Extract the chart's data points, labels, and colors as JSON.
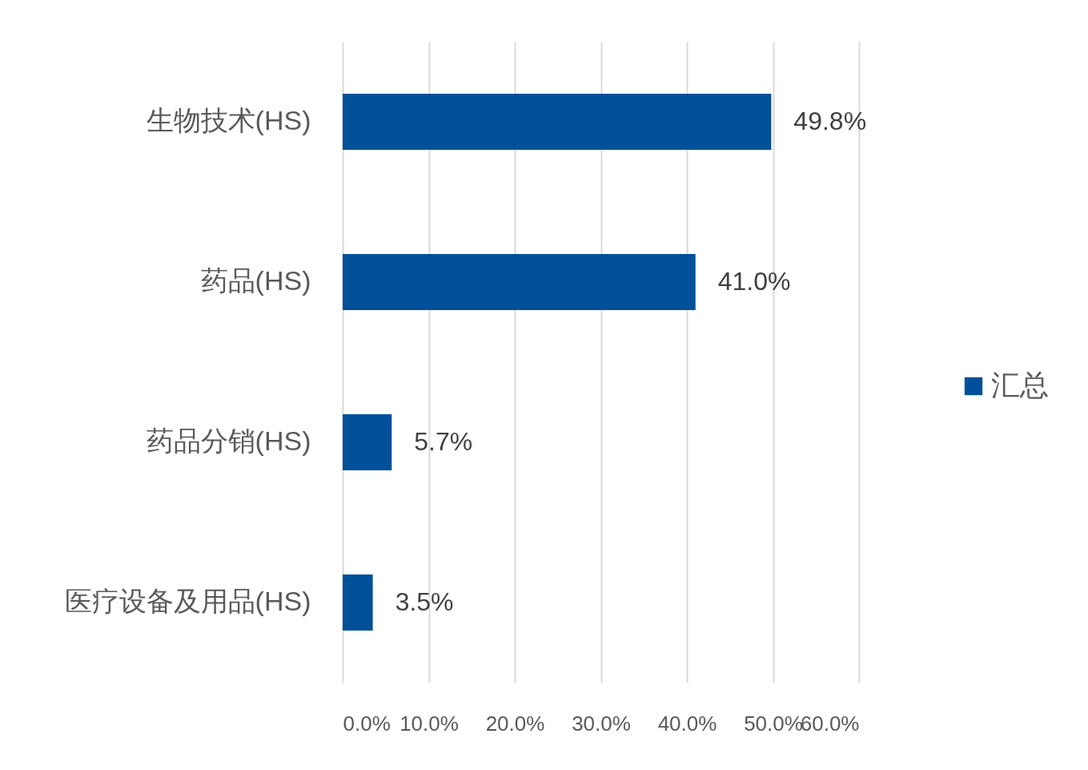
{
  "chart_data": {
    "type": "bar",
    "orientation": "horizontal",
    "categories": [
      "生物技术(HS)",
      "药品(HS)",
      "药品分销(HS)",
      "医疗设备及用品(HS)"
    ],
    "series": [
      {
        "name": "汇总",
        "color": "#00519a",
        "values": [
          49.8,
          41.0,
          5.7,
          3.5
        ],
        "value_labels": [
          "49.8%",
          "41.0%",
          "5.7%",
          "3.5%"
        ]
      }
    ],
    "xlim": [
      0,
      60
    ],
    "xticks": [
      {
        "value": 0,
        "label": "0.0%"
      },
      {
        "value": 10,
        "label": "10.0%"
      },
      {
        "value": 20,
        "label": "20.0%"
      },
      {
        "value": 30,
        "label": "30.0%"
      },
      {
        "value": 40,
        "label": "40.0%"
      },
      {
        "value": 50,
        "label": "50.0%"
      },
      {
        "value": 60,
        "label": "60.0%"
      }
    ],
    "grid": "x",
    "legend": "right"
  }
}
